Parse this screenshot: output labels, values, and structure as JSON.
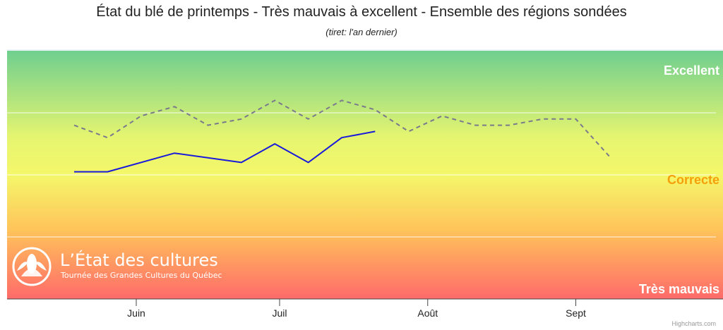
{
  "chart_data": {
    "type": "line",
    "title": "État du blé de printemps - Très mauvais à excellent - Ensemble des régions sondées",
    "subtitle": "(tiret: l'an dernier)",
    "x_ticks": [
      "Juin",
      "Juil",
      "Août",
      "Sept"
    ],
    "y_band_labels": {
      "top": "Excellent",
      "middle": "Correcte",
      "bottom": "Très mauvais"
    },
    "ylim": [
      1,
      5
    ],
    "grid": true,
    "series": [
      {
        "style": "solid",
        "color": "#1a1adb",
        "points": [
          [
            "2023-05-19",
            3.05
          ],
          [
            "2023-05-26",
            3.05
          ],
          [
            "2023-06-09",
            3.35
          ],
          [
            "2023-06-23",
            3.2
          ],
          [
            "2023-06-30",
            3.5
          ],
          [
            "2023-07-07",
            3.2
          ],
          [
            "2023-07-14",
            3.6
          ],
          [
            "2023-07-21",
            3.7
          ]
        ]
      },
      {
        "style": "dash",
        "color": "#7a7a8c",
        "points": [
          [
            "2023-05-19",
            3.8
          ],
          [
            "2023-05-26",
            3.6
          ],
          [
            "2023-06-02",
            3.95
          ],
          [
            "2023-06-09",
            4.1
          ],
          [
            "2023-06-16",
            3.8
          ],
          [
            "2023-06-23",
            3.9
          ],
          [
            "2023-06-30",
            4.2
          ],
          [
            "2023-07-07",
            3.9
          ],
          [
            "2023-07-14",
            4.2
          ],
          [
            "2023-07-21",
            4.05
          ],
          [
            "2023-07-28",
            3.7
          ],
          [
            "2023-08-04",
            3.95
          ],
          [
            "2023-08-11",
            3.8
          ],
          [
            "2023-08-18",
            3.8
          ],
          [
            "2023-08-25",
            3.9
          ],
          [
            "2023-09-01",
            3.9
          ],
          [
            "2023-09-08",
            3.3
          ]
        ]
      }
    ]
  },
  "logo": {
    "title": "L’État des cultures",
    "subtitle": "Tournée des Grandes Cultures du Québec"
  },
  "credits": "Highcharts.com",
  "colors": {
    "band_top": "#6fcf8f",
    "band_mid": "#f4f76a",
    "band_bottom": "#ff6a6a",
    "label_excellent": "#ffffff",
    "label_correcte": "#f5a00a",
    "label_tres_mauvais": "#ffffff"
  }
}
